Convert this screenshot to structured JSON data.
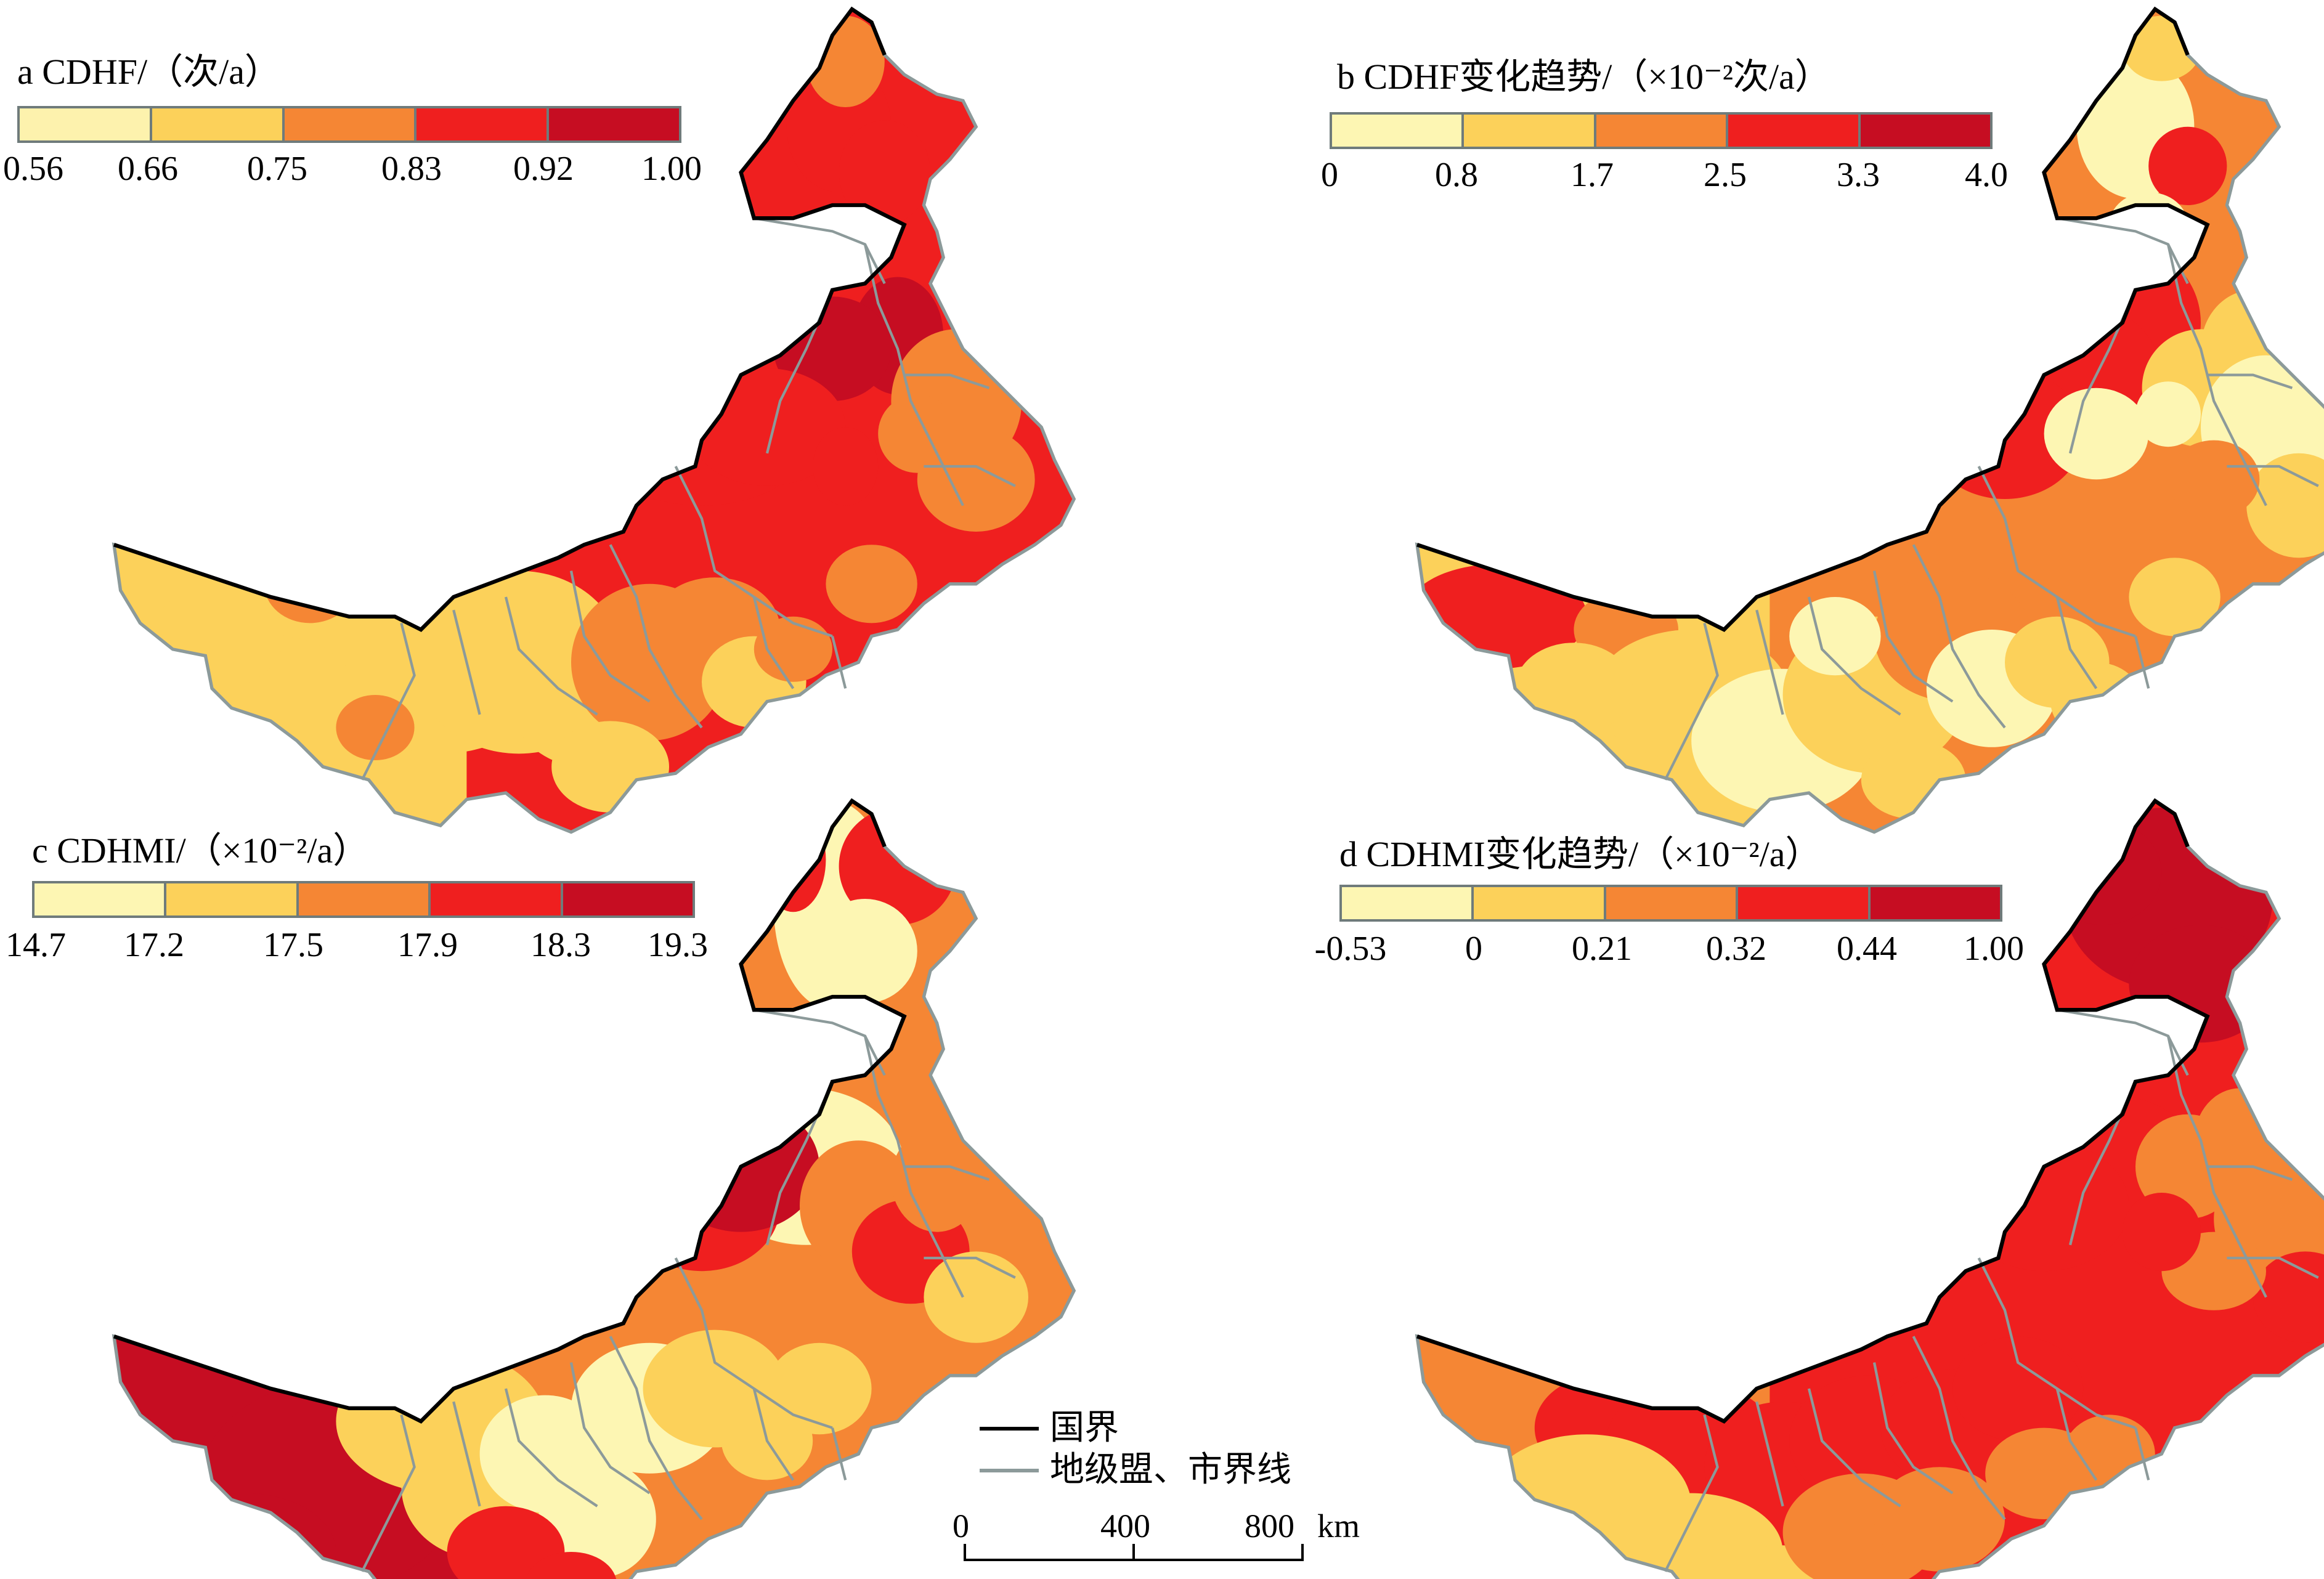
{
  "panels": [
    {
      "id": "a",
      "title_letter": "a",
      "title": "CDHF/（次/a）",
      "legend_labels": [
        "0.56",
        "0.66",
        "0.75",
        "0.83",
        "0.92",
        "1.00"
      ],
      "legend_colors": [
        "#fdf2ad",
        "#fcd15a",
        "#f58634",
        "#ef1f1f",
        "#c60d22"
      ],
      "overall_fill": "#ef1f1f",
      "dominant_west": "#fcd15a"
    },
    {
      "id": "b",
      "title_letter": "b",
      "title": "CDHF变化趋势/（×10⁻²次/a）",
      "legend_labels": [
        "0",
        "0.8",
        "1.7",
        "2.5",
        "3.3",
        "4.0"
      ],
      "legend_colors": [
        "#fdf6b3",
        "#fcd15a",
        "#f58634",
        "#ef1f1f",
        "#c60d22"
      ],
      "overall_fill": "#f58634",
      "dominant_west": "#fcd15a"
    },
    {
      "id": "c",
      "title_letter": "c",
      "title": "CDHMI/（×10⁻²/a）",
      "legend_labels": [
        "14.7",
        "17.2",
        "17.5",
        "17.9",
        "18.3",
        "19.3"
      ],
      "legend_colors": [
        "#fdf6b3",
        "#fcd15a",
        "#f58634",
        "#ef1f1f",
        "#c60d22"
      ],
      "overall_fill": "#f58634",
      "dominant_west": "#c60d22"
    },
    {
      "id": "d",
      "title_letter": "d",
      "title": "CDHMI变化趋势/（×10⁻²/a）",
      "legend_labels": [
        "-0.53",
        "0",
        "0.21",
        "0.32",
        "0.44",
        "1.00"
      ],
      "legend_colors": [
        "#fdf6b3",
        "#fcd15a",
        "#f58634",
        "#ef1f1f",
        "#c60d22"
      ],
      "overall_fill": "#ef1f1f",
      "dominant_west": "#f58634"
    }
  ],
  "map_key": {
    "national_border": "国界",
    "city_border": "地级盟、市界线",
    "national_border_color": "#000000",
    "city_border_color": "#8c9a9a"
  },
  "scale_bar": {
    "labels": [
      "0",
      "400",
      "800"
    ],
    "unit": "km"
  }
}
